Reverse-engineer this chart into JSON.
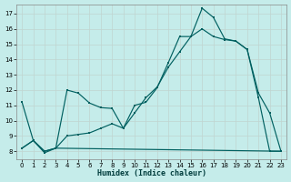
{
  "xlabel": "Humidex (Indice chaleur)",
  "bg_color": "#c5ecea",
  "grid_color": "#c0d4d0",
  "line_color": "#006060",
  "xlim": [
    -0.5,
    23.5
  ],
  "ylim": [
    7.5,
    17.6
  ],
  "xticks": [
    0,
    1,
    2,
    3,
    4,
    5,
    6,
    7,
    8,
    9,
    10,
    11,
    12,
    13,
    14,
    15,
    16,
    17,
    18,
    19,
    20,
    21,
    22,
    23
  ],
  "yticks": [
    8,
    9,
    10,
    11,
    12,
    13,
    14,
    15,
    16,
    17
  ],
  "series1": {
    "x": [
      0,
      1,
      2,
      3,
      4,
      5,
      6,
      7,
      8,
      9,
      10,
      11,
      12,
      13,
      14,
      15,
      16,
      17,
      18,
      19,
      20,
      21,
      22,
      23
    ],
    "y": [
      11.2,
      8.7,
      7.9,
      8.2,
      12.0,
      11.8,
      11.15,
      10.85,
      10.8,
      9.5,
      11.0,
      11.2,
      12.15,
      13.8,
      15.5,
      15.5,
      17.35,
      16.75,
      15.35,
      15.2,
      14.65,
      11.8,
      10.5,
      8.0
    ]
  },
  "series2": {
    "x": [
      0,
      1,
      2,
      3,
      4,
      5,
      6,
      7,
      8,
      9,
      10,
      11,
      12,
      13,
      14,
      15,
      16,
      17,
      18,
      19,
      20,
      21,
      22,
      23
    ],
    "y": [
      8.2,
      8.7,
      8.0,
      8.2,
      9.0,
      9.1,
      9.2,
      9.5,
      9.8,
      9.5,
      10.5,
      11.5,
      12.2,
      13.5,
      14.5,
      15.5,
      16.0,
      15.5,
      15.3,
      15.2,
      14.65,
      11.5,
      8.0,
      8.0
    ]
  },
  "series3": {
    "x": [
      0,
      1,
      2,
      3,
      23
    ],
    "y": [
      8.2,
      8.7,
      8.0,
      8.2,
      8.0
    ]
  }
}
